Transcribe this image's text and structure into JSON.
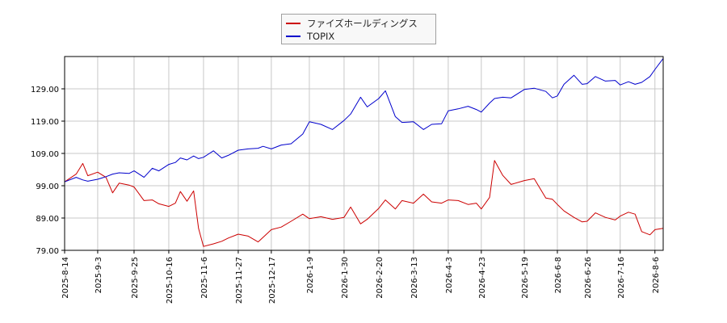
{
  "colors": {
    "background": "#ffffff",
    "grid": "#c8c8c8",
    "frame": "#000000"
  },
  "chart_data": {
    "type": "line",
    "xlabel": "",
    "ylabel": "",
    "ylim": [
      79,
      139
    ],
    "yticks": [
      "79.00",
      "89.00",
      "99.00",
      "109.00",
      "119.00",
      "129.00"
    ],
    "xticks": [
      "2025-8-14",
      "2025-9-3",
      "2025-9-25",
      "2025-10-16",
      "2025-11-6",
      "2025-11-27",
      "2025-12-17",
      "2026-1-9",
      "2026-1-30",
      "2026-2-20",
      "2026-3-13",
      "2026-4-3",
      "2026-4-23",
      "2026-5-19",
      "2026-6-8",
      "2026-6-26",
      "2026-7-16",
      "2026-8-6"
    ],
    "grid": true,
    "legend_position": "top-center",
    "series": [
      {
        "name": "ファイズホールディングス",
        "color": "#cc0000",
        "values": [
          {
            "x": "2025-8-14",
            "y": 100.2
          },
          {
            "x": "2025-8-21",
            "y": 102.6
          },
          {
            "x": "2025-8-25",
            "y": 105.9
          },
          {
            "x": "2025-8-28",
            "y": 102.1
          },
          {
            "x": "2025-9-3",
            "y": 103.2
          },
          {
            "x": "2025-9-8",
            "y": 101.6
          },
          {
            "x": "2025-9-12",
            "y": 96.8
          },
          {
            "x": "2025-9-16",
            "y": 99.8
          },
          {
            "x": "2025-9-22",
            "y": 99.2
          },
          {
            "x": "2025-9-25",
            "y": 98.6
          },
          {
            "x": "2025-10-1",
            "y": 94.4
          },
          {
            "x": "2025-10-6",
            "y": 94.6
          },
          {
            "x": "2025-10-10",
            "y": 93.4
          },
          {
            "x": "2025-10-16",
            "y": 92.6
          },
          {
            "x": "2025-10-20",
            "y": 93.6
          },
          {
            "x": "2025-10-23",
            "y": 97.2
          },
          {
            "x": "2025-10-27",
            "y": 94.2
          },
          {
            "x": "2025-10-31",
            "y": 97.4
          },
          {
            "x": "2025-11-3",
            "y": 85.8
          },
          {
            "x": "2025-11-6",
            "y": 80.2
          },
          {
            "x": "2025-11-12",
            "y": 81.0
          },
          {
            "x": "2025-11-17",
            "y": 81.8
          },
          {
            "x": "2025-11-21",
            "y": 82.8
          },
          {
            "x": "2025-11-27",
            "y": 84.0
          },
          {
            "x": "2025-12-3",
            "y": 83.4
          },
          {
            "x": "2025-12-9",
            "y": 81.6
          },
          {
            "x": "2025-12-12",
            "y": 83.0
          },
          {
            "x": "2025-12-17",
            "y": 85.4
          },
          {
            "x": "2025-12-23",
            "y": 86.2
          },
          {
            "x": "2025-12-29",
            "y": 88.0
          },
          {
            "x": "2026-1-5",
            "y": 90.2
          },
          {
            "x": "2026-1-9",
            "y": 88.8
          },
          {
            "x": "2026-1-16",
            "y": 89.4
          },
          {
            "x": "2026-1-23",
            "y": 88.6
          },
          {
            "x": "2026-1-30",
            "y": 89.2
          },
          {
            "x": "2026-2-3",
            "y": 92.4
          },
          {
            "x": "2026-2-9",
            "y": 87.2
          },
          {
            "x": "2026-2-13",
            "y": 88.6
          },
          {
            "x": "2026-2-20",
            "y": 92.0
          },
          {
            "x": "2026-2-24",
            "y": 94.6
          },
          {
            "x": "2026-3-2",
            "y": 91.8
          },
          {
            "x": "2026-3-6",
            "y": 94.4
          },
          {
            "x": "2026-3-13",
            "y": 93.6
          },
          {
            "x": "2026-3-19",
            "y": 96.4
          },
          {
            "x": "2026-3-24",
            "y": 94.0
          },
          {
            "x": "2026-3-30",
            "y": 93.6
          },
          {
            "x": "2026-4-3",
            "y": 94.6
          },
          {
            "x": "2026-4-9",
            "y": 94.4
          },
          {
            "x": "2026-4-15",
            "y": 93.2
          },
          {
            "x": "2026-4-20",
            "y": 93.6
          },
          {
            "x": "2026-4-23",
            "y": 91.8
          },
          {
            "x": "2026-4-28",
            "y": 95.4
          },
          {
            "x": "2026-5-1",
            "y": 106.8
          },
          {
            "x": "2026-5-6",
            "y": 102.2
          },
          {
            "x": "2026-5-11",
            "y": 99.4
          },
          {
            "x": "2026-5-19",
            "y": 100.6
          },
          {
            "x": "2026-5-25",
            "y": 101.2
          },
          {
            "x": "2026-6-1",
            "y": 95.2
          },
          {
            "x": "2026-6-5",
            "y": 94.8
          },
          {
            "x": "2026-6-8",
            "y": 93.2
          },
          {
            "x": "2026-6-12",
            "y": 91.2
          },
          {
            "x": "2026-6-18",
            "y": 89.2
          },
          {
            "x": "2026-6-23",
            "y": 87.8
          },
          {
            "x": "2026-6-26",
            "y": 88.0
          },
          {
            "x": "2026-7-1",
            "y": 90.6
          },
          {
            "x": "2026-7-7",
            "y": 89.2
          },
          {
            "x": "2026-7-13",
            "y": 88.4
          },
          {
            "x": "2026-7-16",
            "y": 89.6
          },
          {
            "x": "2026-7-21",
            "y": 90.8
          },
          {
            "x": "2026-7-25",
            "y": 90.2
          },
          {
            "x": "2026-7-29",
            "y": 84.8
          },
          {
            "x": "2026-8-3",
            "y": 83.8
          },
          {
            "x": "2026-8-6",
            "y": 85.4
          },
          {
            "x": "2026-8-11",
            "y": 85.8
          }
        ]
      },
      {
        "name": "TOPIX",
        "color": "#0000cc",
        "values": [
          {
            "x": "2025-8-14",
            "y": 100.2
          },
          {
            "x": "2025-8-21",
            "y": 101.6
          },
          {
            "x": "2025-8-25",
            "y": 100.8
          },
          {
            "x": "2025-8-28",
            "y": 100.4
          },
          {
            "x": "2025-9-3",
            "y": 101.0
          },
          {
            "x": "2025-9-8",
            "y": 101.8
          },
          {
            "x": "2025-9-12",
            "y": 102.6
          },
          {
            "x": "2025-9-16",
            "y": 103.0
          },
          {
            "x": "2025-9-22",
            "y": 102.8
          },
          {
            "x": "2025-9-25",
            "y": 103.6
          },
          {
            "x": "2025-10-1",
            "y": 101.6
          },
          {
            "x": "2025-10-6",
            "y": 104.4
          },
          {
            "x": "2025-10-10",
            "y": 103.6
          },
          {
            "x": "2025-10-16",
            "y": 105.6
          },
          {
            "x": "2025-10-20",
            "y": 106.2
          },
          {
            "x": "2025-10-23",
            "y": 107.6
          },
          {
            "x": "2025-10-27",
            "y": 107.0
          },
          {
            "x": "2025-10-31",
            "y": 108.2
          },
          {
            "x": "2025-11-3",
            "y": 107.4
          },
          {
            "x": "2025-11-6",
            "y": 107.8
          },
          {
            "x": "2025-11-12",
            "y": 109.8
          },
          {
            "x": "2025-11-17",
            "y": 107.6
          },
          {
            "x": "2025-11-21",
            "y": 108.4
          },
          {
            "x": "2025-11-27",
            "y": 110.0
          },
          {
            "x": "2025-12-3",
            "y": 110.4
          },
          {
            "x": "2025-12-9",
            "y": 110.6
          },
          {
            "x": "2025-12-12",
            "y": 111.2
          },
          {
            "x": "2025-12-17",
            "y": 110.4
          },
          {
            "x": "2025-12-23",
            "y": 111.6
          },
          {
            "x": "2025-12-29",
            "y": 112.0
          },
          {
            "x": "2026-1-5",
            "y": 115.0
          },
          {
            "x": "2026-1-9",
            "y": 118.8
          },
          {
            "x": "2026-1-16",
            "y": 118.0
          },
          {
            "x": "2026-1-23",
            "y": 116.4
          },
          {
            "x": "2026-1-30",
            "y": 119.2
          },
          {
            "x": "2026-2-3",
            "y": 121.2
          },
          {
            "x": "2026-2-9",
            "y": 126.4
          },
          {
            "x": "2026-2-13",
            "y": 123.4
          },
          {
            "x": "2026-2-20",
            "y": 126.0
          },
          {
            "x": "2026-2-24",
            "y": 128.4
          },
          {
            "x": "2026-3-2",
            "y": 120.4
          },
          {
            "x": "2026-3-6",
            "y": 118.6
          },
          {
            "x": "2026-3-13",
            "y": 118.8
          },
          {
            "x": "2026-3-19",
            "y": 116.4
          },
          {
            "x": "2026-3-24",
            "y": 118.0
          },
          {
            "x": "2026-3-30",
            "y": 118.2
          },
          {
            "x": "2026-4-3",
            "y": 122.2
          },
          {
            "x": "2026-4-9",
            "y": 122.8
          },
          {
            "x": "2026-4-15",
            "y": 123.6
          },
          {
            "x": "2026-4-20",
            "y": 122.6
          },
          {
            "x": "2026-4-23",
            "y": 121.8
          },
          {
            "x": "2026-4-28",
            "y": 124.6
          },
          {
            "x": "2026-5-1",
            "y": 126.0
          },
          {
            "x": "2026-5-6",
            "y": 126.4
          },
          {
            "x": "2026-5-11",
            "y": 126.2
          },
          {
            "x": "2026-5-19",
            "y": 128.8
          },
          {
            "x": "2026-5-25",
            "y": 129.2
          },
          {
            "x": "2026-6-1",
            "y": 128.2
          },
          {
            "x": "2026-6-5",
            "y": 126.2
          },
          {
            "x": "2026-6-8",
            "y": 126.8
          },
          {
            "x": "2026-6-12",
            "y": 130.4
          },
          {
            "x": "2026-6-18",
            "y": 133.2
          },
          {
            "x": "2026-6-23",
            "y": 130.4
          },
          {
            "x": "2026-6-26",
            "y": 130.6
          },
          {
            "x": "2026-7-1",
            "y": 132.8
          },
          {
            "x": "2026-7-7",
            "y": 131.4
          },
          {
            "x": "2026-7-13",
            "y": 131.6
          },
          {
            "x": "2026-7-16",
            "y": 130.2
          },
          {
            "x": "2026-7-21",
            "y": 131.2
          },
          {
            "x": "2026-7-25",
            "y": 130.4
          },
          {
            "x": "2026-7-29",
            "y": 131.0
          },
          {
            "x": "2026-8-3",
            "y": 132.8
          },
          {
            "x": "2026-8-6",
            "y": 135.0
          },
          {
            "x": "2026-8-11",
            "y": 138.4
          }
        ]
      }
    ]
  }
}
